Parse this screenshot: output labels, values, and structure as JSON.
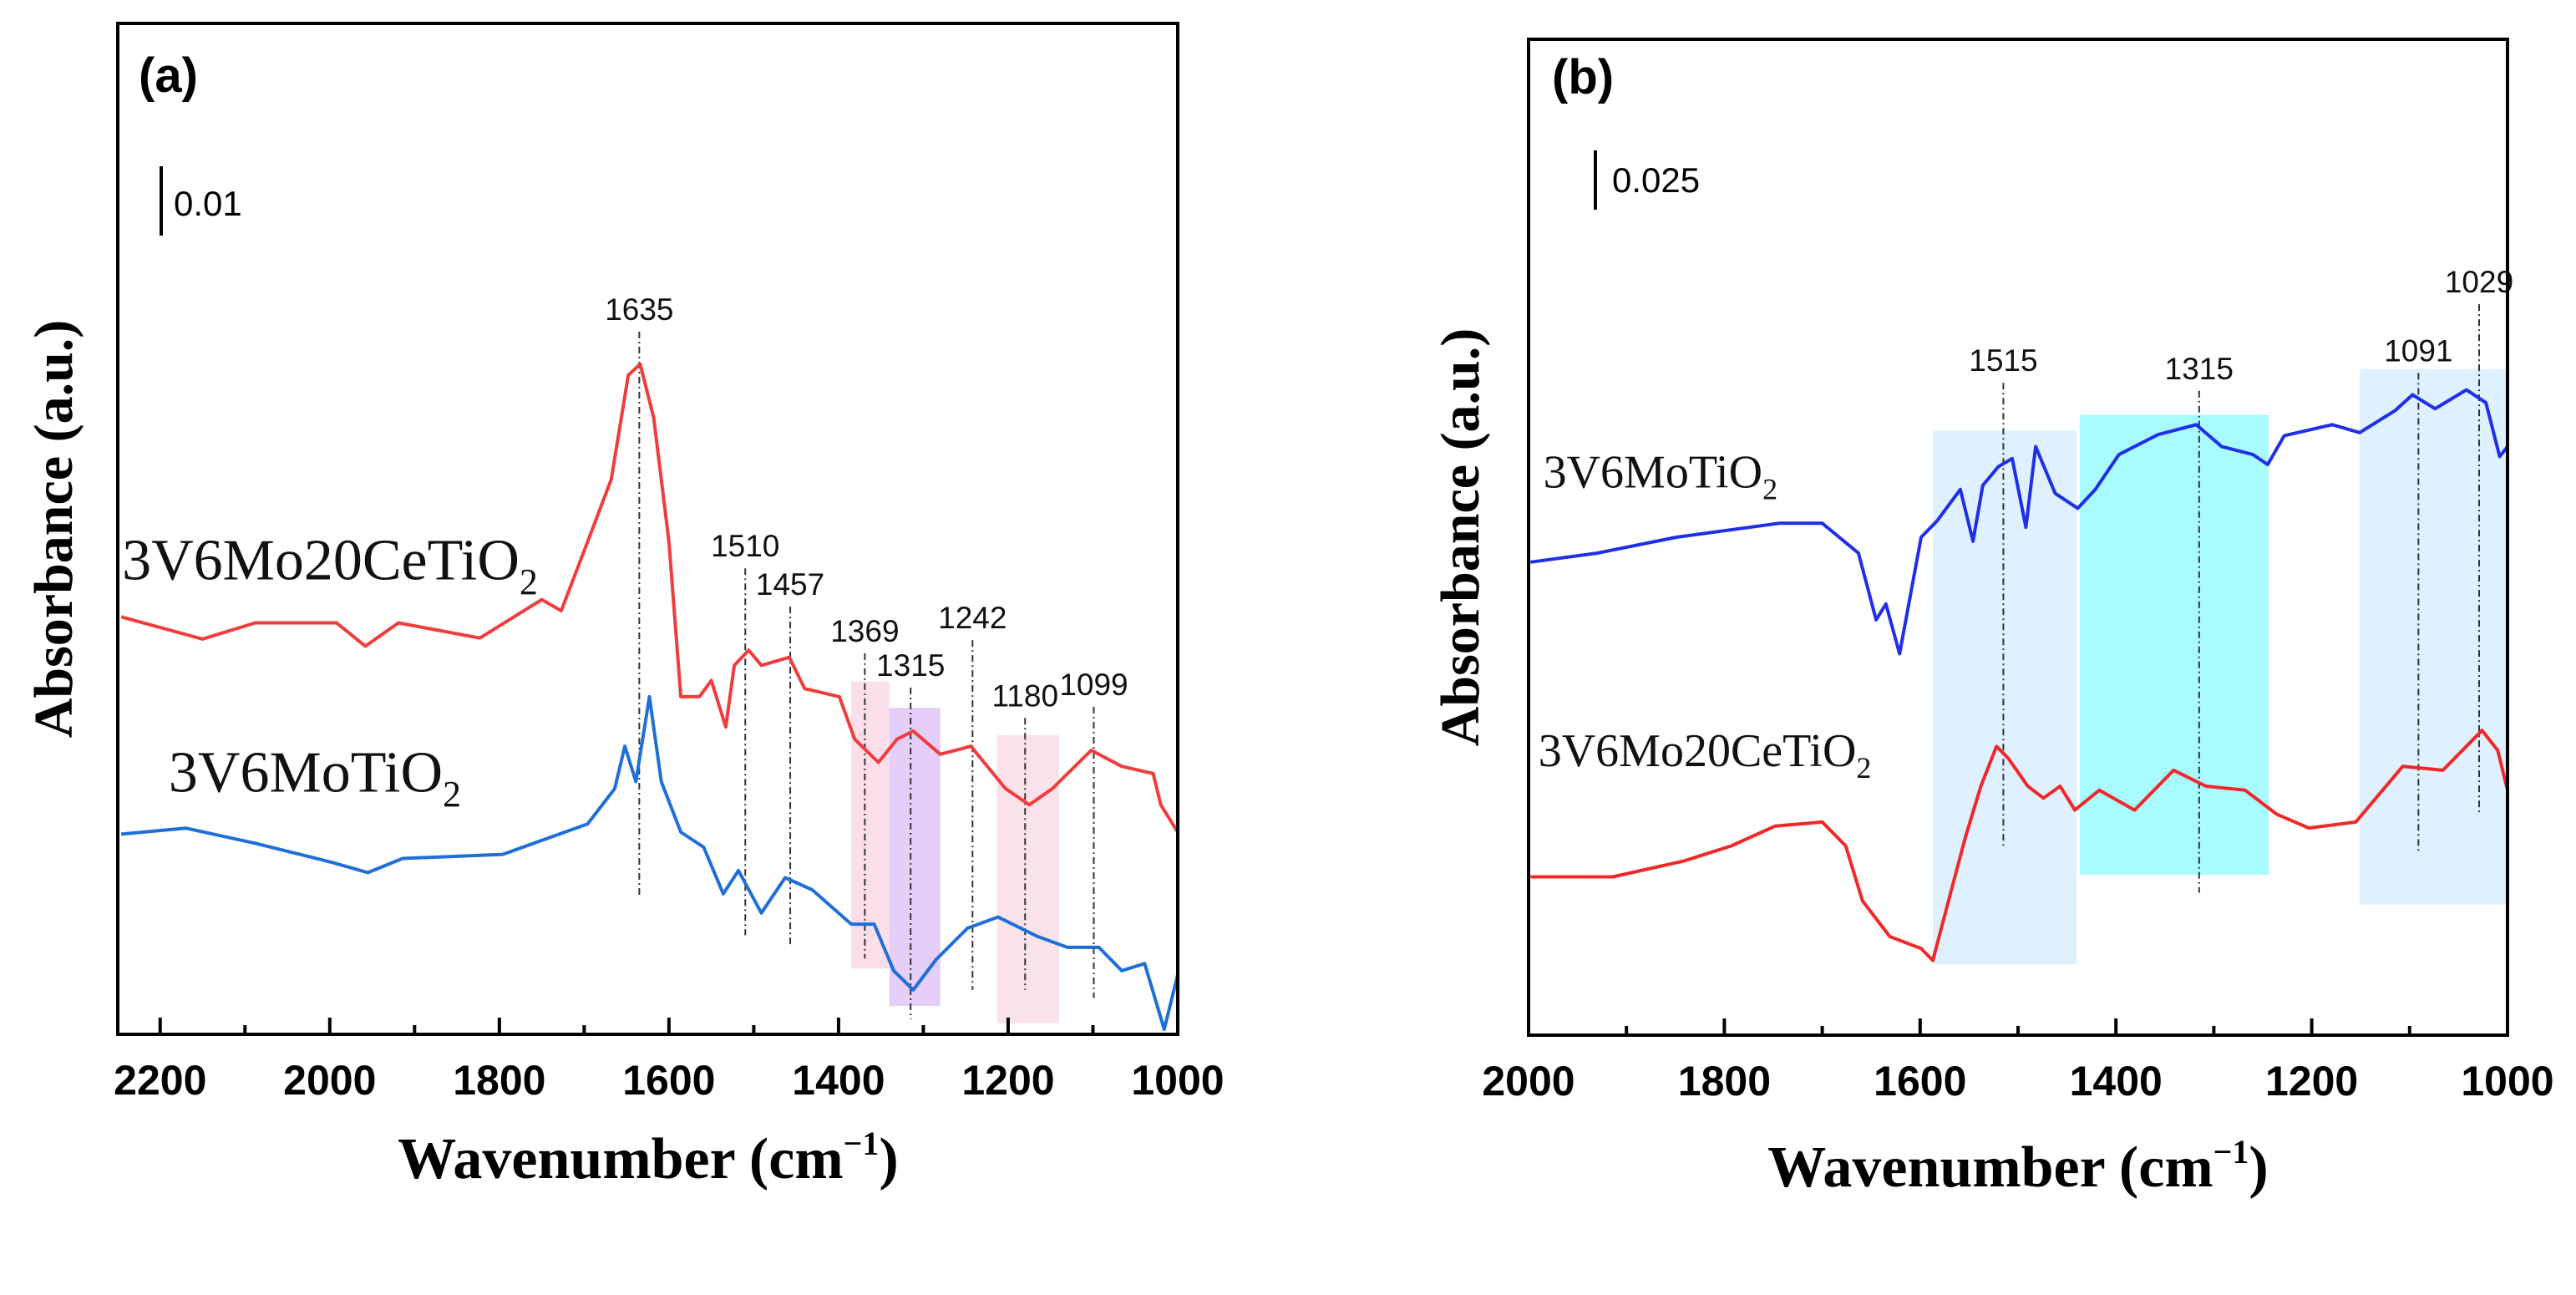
{
  "chart_data": [
    {
      "type": "line",
      "panel_label": "(a)",
      "xlabel": "Wavenumber (cm",
      "xlabel_sup": "−1",
      "xlabel_end": ")",
      "ylabel": "Absorbance (a.u.)",
      "xlim": [
        2250,
        1000
      ],
      "ylim": [
        0,
        100
      ],
      "x_reversed": true,
      "xticks": [
        2200,
        2000,
        1800,
        1600,
        1400,
        1200,
        1000
      ],
      "xtick_labels": [
        "2200",
        "2000",
        "1800",
        "1600",
        "1400",
        "1200",
        "1000"
      ],
      "scale_bar_label": "0.01",
      "series": [
        {
          "name": "3V6Mo20CeTiO",
          "sub": "2",
          "color": "#f03c3c",
          "points": [
            [
              2246,
              41.3
            ],
            [
              2150,
              39.1
            ],
            [
              2088,
              40.7
            ],
            [
              1992,
              40.7
            ],
            [
              1958,
              38.4
            ],
            [
              1919,
              40.7
            ],
            [
              1823,
              39.2
            ],
            [
              1750,
              43.0
            ],
            [
              1727,
              41.9
            ],
            [
              1696,
              48.7
            ],
            [
              1668,
              54.9
            ],
            [
              1648,
              65.2
            ],
            [
              1634,
              66.3
            ],
            [
              1618,
              61.0
            ],
            [
              1600,
              48.7
            ],
            [
              1586,
              33.4
            ],
            [
              1564,
              33.4
            ],
            [
              1550,
              35.0
            ],
            [
              1533,
              30.4
            ],
            [
              1523,
              36.5
            ],
            [
              1506,
              38.0
            ],
            [
              1491,
              36.5
            ],
            [
              1458,
              37.3
            ],
            [
              1440,
              34.2
            ],
            [
              1399,
              33.4
            ],
            [
              1381,
              29.2
            ],
            [
              1353,
              26.9
            ],
            [
              1331,
              29.2
            ],
            [
              1312,
              30.0
            ],
            [
              1280,
              27.7
            ],
            [
              1244,
              28.5
            ],
            [
              1203,
              24.3
            ],
            [
              1175,
              22.7
            ],
            [
              1148,
              24.3
            ],
            [
              1102,
              28.1
            ],
            [
              1066,
              26.5
            ],
            [
              1029,
              25.8
            ],
            [
              1020,
              22.7
            ],
            [
              1000,
              20.0
            ]
          ]
        },
        {
          "name": "3V6MoTiO",
          "sub": "2",
          "color": "#1f6fd6",
          "points": [
            [
              2246,
              19.8
            ],
            [
              2170,
              20.4
            ],
            [
              2088,
              18.9
            ],
            [
              1997,
              17.0
            ],
            [
              1955,
              16.0
            ],
            [
              1914,
              17.4
            ],
            [
              1796,
              17.8
            ],
            [
              1696,
              20.8
            ],
            [
              1664,
              24.3
            ],
            [
              1652,
              28.5
            ],
            [
              1639,
              25.0
            ],
            [
              1623,
              33.4
            ],
            [
              1609,
              25.0
            ],
            [
              1586,
              20.0
            ],
            [
              1559,
              18.5
            ],
            [
              1536,
              13.9
            ],
            [
              1518,
              16.2
            ],
            [
              1491,
              12.0
            ],
            [
              1463,
              15.5
            ],
            [
              1431,
              14.3
            ],
            [
              1385,
              10.9
            ],
            [
              1358,
              10.9
            ],
            [
              1335,
              6.3
            ],
            [
              1312,
              4.4
            ],
            [
              1285,
              7.4
            ],
            [
              1248,
              10.5
            ],
            [
              1212,
              11.6
            ],
            [
              1166,
              9.7
            ],
            [
              1130,
              8.6
            ],
            [
              1093,
              8.6
            ],
            [
              1066,
              6.3
            ],
            [
              1039,
              7.0
            ],
            [
              1016,
              0.5
            ],
            [
              1000,
              5.9
            ]
          ]
        }
      ],
      "legend_positions": [
        [
          2245,
          45
        ],
        [
          2190,
          24
        ]
      ],
      "annotations": [
        {
          "label": "1635",
          "x": 1635,
          "y_top": 69.5,
          "y_bottom": 13.5
        },
        {
          "label": "1510",
          "x": 1510,
          "y_top": 46.1,
          "y_bottom": 9.8
        },
        {
          "label": "1457",
          "x": 1457,
          "y_top": 42.3,
          "y_bottom": 8.8
        },
        {
          "label": "1369",
          "x": 1369,
          "y_top": 37.7,
          "y_bottom": 7.5
        },
        {
          "label": "1315",
          "x": 1315,
          "y_top": 34.3,
          "y_bottom": 1.5
        },
        {
          "label": "1242",
          "x": 1242,
          "y_top": 39.0,
          "y_bottom": 4.4
        },
        {
          "label": "1180",
          "x": 1180,
          "y_top": 31.3,
          "y_bottom": 4.4
        },
        {
          "label": "1099",
          "x": 1099,
          "y_top": 32.4,
          "y_bottom": 3.6
        }
      ],
      "shaded_regions": [
        {
          "x_from": 1385,
          "x_to": 1340,
          "y_from": 6.5,
          "y_to": 34.9,
          "color": "#f9dbe8"
        },
        {
          "x_from": 1340,
          "x_to": 1280,
          "y_from": 2.8,
          "y_to": 32.3,
          "color": "#e2c9f7"
        },
        {
          "x_from": 1213,
          "x_to": 1140,
          "y_from": 1.1,
          "y_to": 29.6,
          "color": "#fadfe9"
        }
      ]
    },
    {
      "type": "line",
      "panel_label": "(b)",
      "xlabel": "Wavenumber (cm",
      "xlabel_sup": "−1",
      "xlabel_end": ")",
      "ylabel": "Absorbance (a.u.)",
      "xlim": [
        2000,
        1000
      ],
      "ylim": [
        0,
        100
      ],
      "x_reversed": true,
      "xticks": [
        2000,
        1800,
        1600,
        1400,
        1200,
        1000
      ],
      "xtick_labels": [
        "2000",
        "1800",
        "1600",
        "1400",
        "1200",
        "1000"
      ],
      "scale_bar_label": "0.025",
      "series": [
        {
          "name": "3V6MoTiO",
          "sub": "2",
          "color": "#1f2fe8",
          "points": [
            [
              1998,
              47.5
            ],
            [
              1930,
              48.4
            ],
            [
              1849,
              50.0
            ],
            [
              1744,
              51.4
            ],
            [
              1700,
              51.4
            ],
            [
              1663,
              48.4
            ],
            [
              1645,
              41.7
            ],
            [
              1635,
              43.3
            ],
            [
              1621,
              38.3
            ],
            [
              1599,
              50.0
            ],
            [
              1583,
              51.6
            ],
            [
              1559,
              54.8
            ],
            [
              1546,
              49.6
            ],
            [
              1536,
              55.2
            ],
            [
              1520,
              57.1
            ],
            [
              1506,
              57.9
            ],
            [
              1492,
              51.0
            ],
            [
              1482,
              59.1
            ],
            [
              1462,
              54.4
            ],
            [
              1439,
              52.9
            ],
            [
              1421,
              54.8
            ],
            [
              1397,
              58.3
            ],
            [
              1357,
              60.3
            ],
            [
              1318,
              61.3
            ],
            [
              1292,
              59.1
            ],
            [
              1260,
              58.3
            ],
            [
              1245,
              57.3
            ],
            [
              1228,
              60.2
            ],
            [
              1179,
              61.3
            ],
            [
              1151,
              60.5
            ],
            [
              1115,
              62.7
            ],
            [
              1097,
              64.3
            ],
            [
              1074,
              62.9
            ],
            [
              1042,
              64.8
            ],
            [
              1022,
              63.5
            ],
            [
              1008,
              58.1
            ],
            [
              1000,
              59.1
            ]
          ]
        },
        {
          "name": "3V6Mo20CeTiO",
          "sub": "2",
          "color": "#f02828",
          "points": [
            [
              1998,
              15.9
            ],
            [
              1914,
              15.9
            ],
            [
              1841,
              17.5
            ],
            [
              1793,
              19.0
            ],
            [
              1748,
              21.0
            ],
            [
              1700,
              21.4
            ],
            [
              1676,
              19.0
            ],
            [
              1659,
              13.5
            ],
            [
              1631,
              9.9
            ],
            [
              1599,
              8.7
            ],
            [
              1587,
              7.5
            ],
            [
              1571,
              13.5
            ],
            [
              1554,
              19.8
            ],
            [
              1538,
              25.0
            ],
            [
              1522,
              29.0
            ],
            [
              1510,
              27.8
            ],
            [
              1490,
              25.0
            ],
            [
              1474,
              23.8
            ],
            [
              1457,
              25.0
            ],
            [
              1442,
              22.6
            ],
            [
              1417,
              24.6
            ],
            [
              1381,
              22.6
            ],
            [
              1341,
              26.6
            ],
            [
              1308,
              25.0
            ],
            [
              1268,
              24.6
            ],
            [
              1236,
              22.2
            ],
            [
              1203,
              20.8
            ],
            [
              1155,
              21.4
            ],
            [
              1107,
              27.0
            ],
            [
              1066,
              26.6
            ],
            [
              1026,
              30.6
            ],
            [
              1010,
              28.6
            ],
            [
              1000,
              24.6
            ]
          ]
        }
      ],
      "legend_positions": [
        [
          1985,
          55
        ],
        [
          1990,
          27
        ]
      ],
      "annotations": [
        {
          "label": "1515",
          "x": 1515,
          "y_top": 65.5,
          "y_bottom": 18.7
        },
        {
          "label": "1315",
          "x": 1315,
          "y_top": 64.7,
          "y_bottom": 14.3
        },
        {
          "label": "1091",
          "x": 1091,
          "y_top": 66.5,
          "y_bottom": 18.4
        },
        {
          "label": "1029",
          "x": 1029,
          "y_top": 73.4,
          "y_bottom": 22.2
        }
      ],
      "shaded_regions": [
        {
          "x_from": 1587,
          "x_to": 1440,
          "y_from": 7.1,
          "y_to": 60.7,
          "color": "#dcefff"
        },
        {
          "x_from": 1437,
          "x_to": 1244,
          "y_from": 16.1,
          "y_to": 62.3,
          "color": "#9ffbff"
        },
        {
          "x_from": 1151,
          "x_to": 1000,
          "y_from": 13.1,
          "y_to": 66.9,
          "color": "#dcefff"
        }
      ]
    }
  ]
}
